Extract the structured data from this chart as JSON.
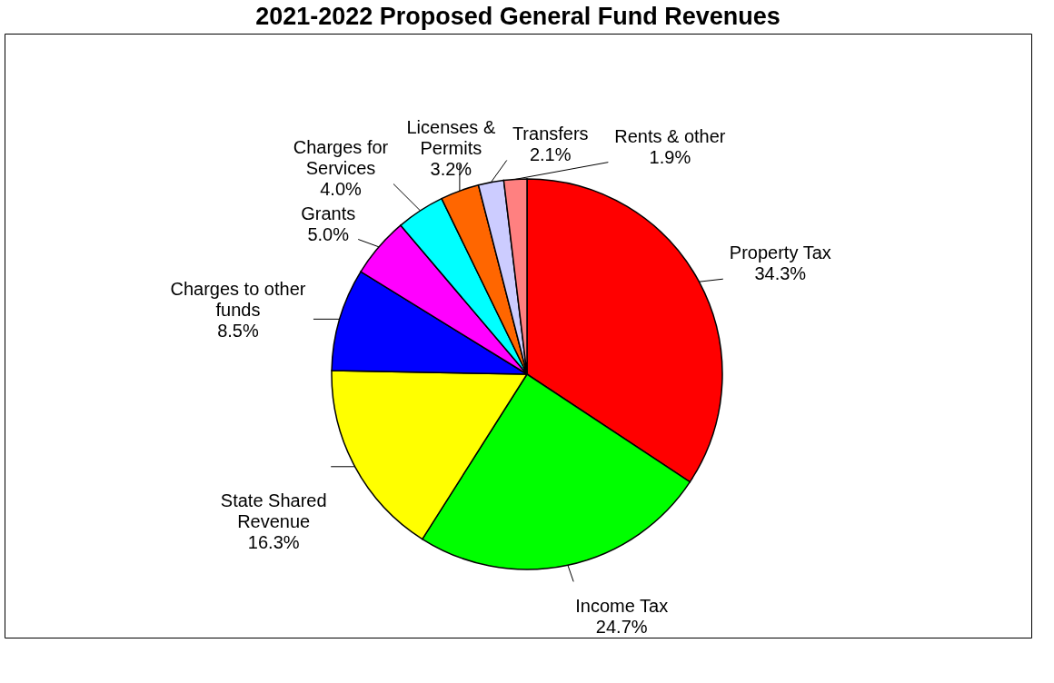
{
  "chart_data": {
    "type": "pie",
    "title": "2021-2022 Proposed General Fund Revenues",
    "categories": [
      "Property Tax",
      "Income Tax",
      "State Shared Revenue",
      "Charges to other funds",
      "Grants",
      "Charges for Services",
      "Licenses & Permits",
      "Transfers",
      "Rents & other"
    ],
    "values": [
      34.3,
      24.7,
      16.3,
      8.5,
      5.0,
      4.0,
      3.2,
      2.1,
      1.9
    ],
    "value_labels": [
      "34.3%",
      "24.7%",
      "16.3%",
      "8.5%",
      "5.0%",
      "4.0%",
      "3.2%",
      "2.1%",
      "1.9%"
    ],
    "colors": [
      "#ff0000",
      "#00ff00",
      "#ffff00",
      "#0000ff",
      "#ff00ff",
      "#00ffff",
      "#ff6600",
      "#ccccff",
      "#ff8080"
    ],
    "legend": false
  }
}
